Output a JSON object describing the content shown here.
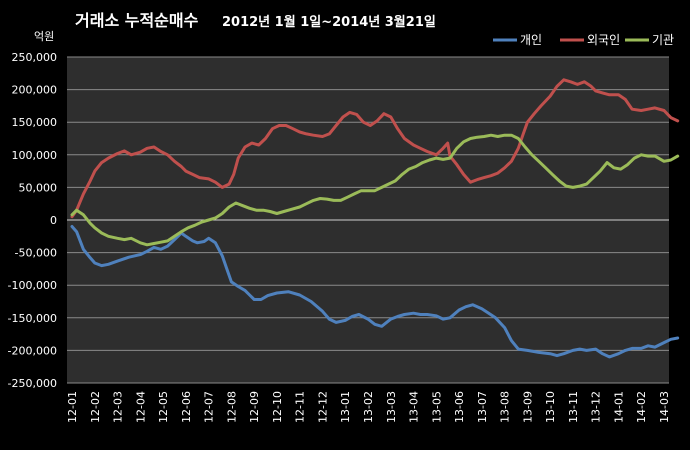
{
  "chart_data": {
    "type": "line",
    "title_main": "거래소  누적순매수",
    "title_sub": "2012년 1월 1일~2014년 3월21일",
    "ylabel": "억원",
    "ylim": [
      -250000,
      250000
    ],
    "y_ticks": [
      250000,
      200000,
      150000,
      100000,
      50000,
      0,
      -50000,
      -100000,
      -150000,
      -200000,
      -250000
    ],
    "y_tick_labels": [
      "250,000",
      "200,000",
      "150,000",
      "100,000",
      "50,000",
      "0",
      "-50,000",
      "-100,000",
      "-150,000",
      "-200,000",
      "-250,000"
    ],
    "x_tick_labels": [
      "12-01",
      "12-02",
      "12-03",
      "12-04",
      "12-05",
      "12-06",
      "12-07",
      "12-08",
      "12-09",
      "12-10",
      "12-11",
      "12-12",
      "13-01",
      "13-02",
      "13-03",
      "13-04",
      "13-05",
      "13-06",
      "13-07",
      "13-08",
      "13-09",
      "13-10",
      "13-11",
      "13-12",
      "14-01",
      "14-02",
      "14-03"
    ],
    "grid": true,
    "legend_position": "top-right",
    "series": [
      {
        "name": "개인",
        "color": "#4f81bd",
        "points": [
          [
            0,
            -10000
          ],
          [
            0.2,
            -18000
          ],
          [
            0.5,
            -45000
          ],
          [
            0.8,
            -58000
          ],
          [
            1.0,
            -66000
          ],
          [
            1.3,
            -70000
          ],
          [
            1.6,
            -68000
          ],
          [
            2.0,
            -63000
          ],
          [
            2.5,
            -57000
          ],
          [
            3.0,
            -53000
          ],
          [
            3.3,
            -48000
          ],
          [
            3.6,
            -42000
          ],
          [
            3.9,
            -45000
          ],
          [
            4.2,
            -40000
          ],
          [
            4.5,
            -30000
          ],
          [
            4.8,
            -20000
          ],
          [
            5.0,
            -25000
          ],
          [
            5.3,
            -32000
          ],
          [
            5.5,
            -35000
          ],
          [
            5.8,
            -33000
          ],
          [
            6.0,
            -28000
          ],
          [
            6.3,
            -35000
          ],
          [
            6.6,
            -55000
          ],
          [
            6.8,
            -75000
          ],
          [
            7.0,
            -95000
          ],
          [
            7.3,
            -102000
          ],
          [
            7.6,
            -108000
          ],
          [
            7.8,
            -115000
          ],
          [
            8.0,
            -122000
          ],
          [
            8.3,
            -122000
          ],
          [
            8.6,
            -116000
          ],
          [
            9.0,
            -112000
          ],
          [
            9.5,
            -110000
          ],
          [
            10.0,
            -115000
          ],
          [
            10.5,
            -125000
          ],
          [
            11.0,
            -140000
          ],
          [
            11.3,
            -152000
          ],
          [
            11.6,
            -157000
          ],
          [
            12.0,
            -154000
          ],
          [
            12.3,
            -148000
          ],
          [
            12.6,
            -145000
          ],
          [
            13.0,
            -152000
          ],
          [
            13.3,
            -160000
          ],
          [
            13.6,
            -163000
          ],
          [
            14.0,
            -152000
          ],
          [
            14.3,
            -148000
          ],
          [
            14.6,
            -145000
          ],
          [
            15.0,
            -143000
          ],
          [
            15.3,
            -145000
          ],
          [
            15.6,
            -145000
          ],
          [
            16.0,
            -147000
          ],
          [
            16.3,
            -152000
          ],
          [
            16.6,
            -150000
          ],
          [
            17.0,
            -138000
          ],
          [
            17.3,
            -133000
          ],
          [
            17.6,
            -130000
          ],
          [
            18.0,
            -136000
          ],
          [
            18.3,
            -143000
          ],
          [
            18.6,
            -150000
          ],
          [
            19.0,
            -165000
          ],
          [
            19.3,
            -185000
          ],
          [
            19.6,
            -198000
          ],
          [
            20.0,
            -200000
          ],
          [
            20.5,
            -203000
          ],
          [
            21.0,
            -205000
          ],
          [
            21.3,
            -208000
          ],
          [
            21.6,
            -205000
          ],
          [
            22.0,
            -200000
          ],
          [
            22.3,
            -198000
          ],
          [
            22.6,
            -200000
          ],
          [
            23.0,
            -198000
          ],
          [
            23.3,
            -205000
          ],
          [
            23.6,
            -210000
          ],
          [
            24.0,
            -205000
          ],
          [
            24.3,
            -200000
          ],
          [
            24.6,
            -197000
          ],
          [
            25.0,
            -197000
          ],
          [
            25.3,
            -193000
          ],
          [
            25.6,
            -195000
          ],
          [
            26.0,
            -188000
          ],
          [
            26.3,
            -183000
          ],
          [
            26.6,
            -181000
          ]
        ]
      },
      {
        "name": "외국인",
        "color": "#c0504d",
        "points": [
          [
            0,
            5000
          ],
          [
            0.2,
            15000
          ],
          [
            0.5,
            40000
          ],
          [
            0.8,
            60000
          ],
          [
            1.0,
            75000
          ],
          [
            1.3,
            88000
          ],
          [
            1.6,
            95000
          ],
          [
            2.0,
            102000
          ],
          [
            2.3,
            106000
          ],
          [
            2.6,
            100000
          ],
          [
            3.0,
            104000
          ],
          [
            3.3,
            110000
          ],
          [
            3.6,
            112000
          ],
          [
            3.9,
            105000
          ],
          [
            4.2,
            100000
          ],
          [
            4.5,
            90000
          ],
          [
            4.8,
            82000
          ],
          [
            5.0,
            75000
          ],
          [
            5.3,
            70000
          ],
          [
            5.6,
            65000
          ],
          [
            6.0,
            63000
          ],
          [
            6.3,
            58000
          ],
          [
            6.6,
            50000
          ],
          [
            6.9,
            55000
          ],
          [
            7.1,
            70000
          ],
          [
            7.3,
            95000
          ],
          [
            7.6,
            112000
          ],
          [
            7.9,
            118000
          ],
          [
            8.2,
            115000
          ],
          [
            8.5,
            125000
          ],
          [
            8.8,
            140000
          ],
          [
            9.1,
            145000
          ],
          [
            9.4,
            145000
          ],
          [
            9.7,
            140000
          ],
          [
            10.0,
            135000
          ],
          [
            10.3,
            132000
          ],
          [
            10.6,
            130000
          ],
          [
            11.0,
            128000
          ],
          [
            11.3,
            132000
          ],
          [
            11.6,
            145000
          ],
          [
            11.9,
            158000
          ],
          [
            12.2,
            165000
          ],
          [
            12.5,
            162000
          ],
          [
            12.8,
            150000
          ],
          [
            13.1,
            145000
          ],
          [
            13.4,
            152000
          ],
          [
            13.7,
            163000
          ],
          [
            14.0,
            158000
          ],
          [
            14.3,
            140000
          ],
          [
            14.6,
            125000
          ],
          [
            15.0,
            115000
          ],
          [
            15.3,
            110000
          ],
          [
            15.6,
            105000
          ],
          [
            16.0,
            100000
          ],
          [
            16.3,
            110000
          ],
          [
            16.5,
            118000
          ],
          [
            16.6,
            98000
          ],
          [
            16.9,
            85000
          ],
          [
            17.2,
            70000
          ],
          [
            17.5,
            58000
          ],
          [
            17.8,
            62000
          ],
          [
            18.1,
            65000
          ],
          [
            18.4,
            68000
          ],
          [
            18.7,
            72000
          ],
          [
            19.0,
            80000
          ],
          [
            19.3,
            90000
          ],
          [
            19.6,
            110000
          ],
          [
            19.8,
            130000
          ],
          [
            20.0,
            150000
          ],
          [
            20.3,
            163000
          ],
          [
            20.6,
            175000
          ],
          [
            21.0,
            190000
          ],
          [
            21.3,
            205000
          ],
          [
            21.6,
            215000
          ],
          [
            21.9,
            212000
          ],
          [
            22.2,
            208000
          ],
          [
            22.5,
            212000
          ],
          [
            22.8,
            205000
          ],
          [
            23.0,
            198000
          ],
          [
            23.3,
            195000
          ],
          [
            23.6,
            192000
          ],
          [
            24.0,
            192000
          ],
          [
            24.3,
            185000
          ],
          [
            24.6,
            170000
          ],
          [
            25.0,
            168000
          ],
          [
            25.3,
            170000
          ],
          [
            25.6,
            172000
          ],
          [
            26.0,
            168000
          ],
          [
            26.3,
            157000
          ],
          [
            26.6,
            152000
          ]
        ]
      },
      {
        "name": "기관",
        "color": "#9bbb59",
        "points": [
          [
            0,
            8000
          ],
          [
            0.2,
            15000
          ],
          [
            0.5,
            8000
          ],
          [
            0.8,
            -5000
          ],
          [
            1.0,
            -12000
          ],
          [
            1.3,
            -20000
          ],
          [
            1.6,
            -25000
          ],
          [
            2.0,
            -28000
          ],
          [
            2.3,
            -30000
          ],
          [
            2.6,
            -28000
          ],
          [
            3.0,
            -35000
          ],
          [
            3.3,
            -38000
          ],
          [
            3.6,
            -36000
          ],
          [
            3.9,
            -34000
          ],
          [
            4.2,
            -32000
          ],
          [
            4.5,
            -25000
          ],
          [
            4.8,
            -18000
          ],
          [
            5.1,
            -12000
          ],
          [
            5.4,
            -8000
          ],
          [
            5.7,
            -3000
          ],
          [
            6.0,
            0
          ],
          [
            6.3,
            3000
          ],
          [
            6.6,
            10000
          ],
          [
            6.9,
            20000
          ],
          [
            7.2,
            26000
          ],
          [
            7.5,
            22000
          ],
          [
            7.8,
            18000
          ],
          [
            8.1,
            15000
          ],
          [
            8.4,
            15000
          ],
          [
            8.7,
            13000
          ],
          [
            9.0,
            10000
          ],
          [
            9.3,
            13000
          ],
          [
            9.6,
            16000
          ],
          [
            10.0,
            20000
          ],
          [
            10.3,
            25000
          ],
          [
            10.6,
            30000
          ],
          [
            10.9,
            33000
          ],
          [
            11.2,
            32000
          ],
          [
            11.5,
            30000
          ],
          [
            11.8,
            30000
          ],
          [
            12.1,
            35000
          ],
          [
            12.4,
            40000
          ],
          [
            12.7,
            45000
          ],
          [
            13.0,
            45000
          ],
          [
            13.3,
            45000
          ],
          [
            13.6,
            50000
          ],
          [
            13.9,
            55000
          ],
          [
            14.2,
            60000
          ],
          [
            14.5,
            70000
          ],
          [
            14.8,
            78000
          ],
          [
            15.1,
            82000
          ],
          [
            15.4,
            88000
          ],
          [
            15.7,
            92000
          ],
          [
            16.0,
            95000
          ],
          [
            16.3,
            93000
          ],
          [
            16.6,
            95000
          ],
          [
            16.9,
            110000
          ],
          [
            17.2,
            120000
          ],
          [
            17.5,
            125000
          ],
          [
            17.8,
            127000
          ],
          [
            18.1,
            128000
          ],
          [
            18.4,
            130000
          ],
          [
            18.7,
            128000
          ],
          [
            19.0,
            130000
          ],
          [
            19.3,
            130000
          ],
          [
            19.6,
            125000
          ],
          [
            19.9,
            112000
          ],
          [
            20.2,
            100000
          ],
          [
            20.5,
            90000
          ],
          [
            20.8,
            80000
          ],
          [
            21.1,
            70000
          ],
          [
            21.4,
            60000
          ],
          [
            21.7,
            52000
          ],
          [
            22.0,
            50000
          ],
          [
            22.3,
            52000
          ],
          [
            22.6,
            55000
          ],
          [
            22.9,
            65000
          ],
          [
            23.2,
            75000
          ],
          [
            23.5,
            88000
          ],
          [
            23.8,
            80000
          ],
          [
            24.1,
            78000
          ],
          [
            24.4,
            85000
          ],
          [
            24.7,
            95000
          ],
          [
            25.0,
            100000
          ],
          [
            25.3,
            98000
          ],
          [
            25.6,
            98000
          ],
          [
            26.0,
            90000
          ],
          [
            26.3,
            92000
          ],
          [
            26.6,
            98000
          ]
        ]
      }
    ]
  }
}
